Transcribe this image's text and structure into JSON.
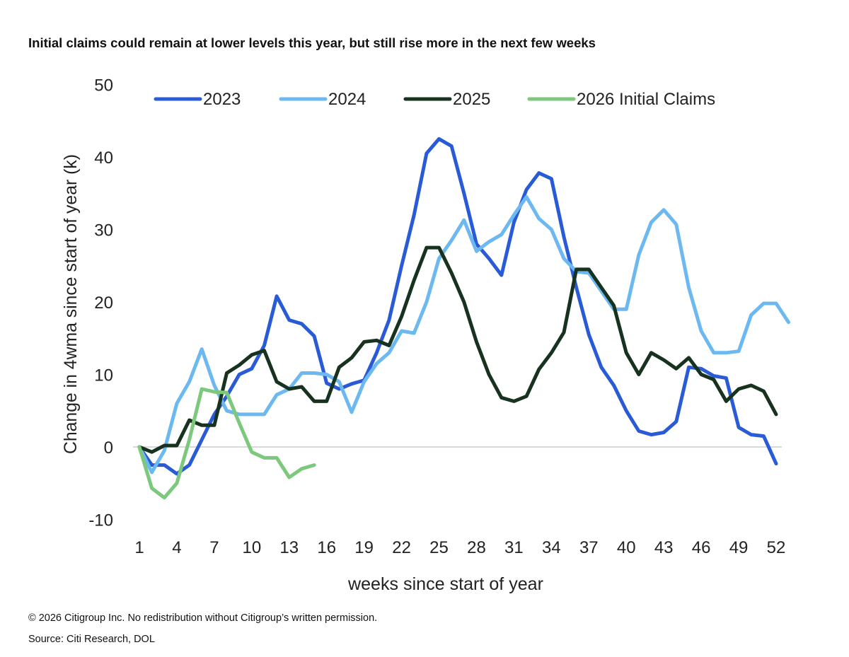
{
  "chart_data": {
    "type": "line",
    "title": "Initial claims could remain at lower levels this year, but still rise more in the next few weeks",
    "xlabel": "weeks since start of year",
    "ylabel": "Change in 4wma since start of year (k)",
    "xlim": [
      1,
      52
    ],
    "ylim": [
      -10,
      50
    ],
    "x_ticks": [
      1,
      4,
      7,
      10,
      13,
      16,
      19,
      22,
      25,
      28,
      31,
      34,
      37,
      40,
      43,
      46,
      49,
      52
    ],
    "y_ticks": [
      -10,
      0,
      10,
      20,
      30,
      40,
      50
    ],
    "grid": false,
    "zero_line": true,
    "legend_position": "top",
    "series": [
      {
        "name": "2023",
        "color": "#2a5bd7",
        "values": [
          0,
          -2.5,
          -2.5,
          -3.7,
          -2.5,
          1,
          4.5,
          7,
          10,
          10.8,
          14,
          20.8,
          17.5,
          17,
          15.3,
          8.8,
          8,
          8.7,
          9.2,
          13,
          17.5,
          25,
          32,
          40.5,
          42.5,
          41.5,
          35,
          28,
          26,
          23.7,
          31,
          35.5,
          37.8,
          37,
          29,
          22,
          15.5,
          11,
          8.5,
          5,
          2.2,
          1.7,
          2,
          3.5,
          11,
          10.8,
          9.8,
          9.5,
          2.7,
          1.7,
          1.5,
          -2.3
        ]
      },
      {
        "name": "2024",
        "color": "#6cb8f0",
        "values": [
          0,
          -3.5,
          -0.5,
          6,
          9,
          13.5,
          8.5,
          5,
          4.5,
          4.5,
          4.5,
          7.2,
          8,
          10.2,
          10.2,
          10,
          9,
          4.8,
          9,
          11.5,
          13,
          16,
          15.7,
          20,
          26,
          28.5,
          31.3,
          27,
          28.3,
          29.3,
          32,
          34.5,
          31.5,
          30,
          26,
          24.2,
          24,
          21.5,
          19,
          19,
          26.5,
          31,
          32.7,
          30.7,
          22,
          16,
          13,
          13,
          13.2,
          18.2,
          19.8,
          19.8,
          17.2
        ]
      },
      {
        "name": "2025",
        "color": "#17331f",
        "values": [
          0,
          -0.7,
          0.2,
          0.2,
          3.7,
          3,
          3,
          10.2,
          11.3,
          12.7,
          13.3,
          9,
          8,
          8.3,
          6.3,
          6.3,
          11,
          12.3,
          14.5,
          14.7,
          14,
          18,
          23,
          27.5,
          27.5,
          24,
          20,
          14.5,
          10,
          6.8,
          6.3,
          7,
          10.7,
          13,
          15.8,
          24.5,
          24.5,
          22,
          19.5,
          13,
          10,
          13,
          12,
          10.8,
          12.3,
          10,
          9.3,
          6.3,
          8,
          8.5,
          7.7,
          4.5
        ]
      },
      {
        "name": "2026 Initial Claims",
        "color": "#7cc87c",
        "values": [
          0,
          -5.7,
          -7,
          -5,
          1,
          8,
          7.6,
          7.5,
          3.3,
          -0.7,
          -1.5,
          -1.5,
          -4.2,
          -3,
          -2.5
        ]
      }
    ]
  },
  "footer": {
    "copyright": "© 2026 Citigroup Inc. No redistribution without Citigroup’s written permission.",
    "source": "Source: Citi Research, DOL"
  }
}
